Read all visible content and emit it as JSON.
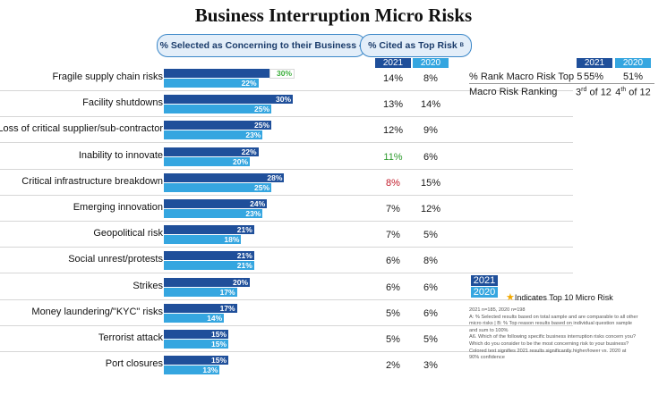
{
  "title": "Business Interruption Micro Risks",
  "header_pills": {
    "selected": "% Selected as Concerning to their Business",
    "selected_sup": "A",
    "cited": "% Cited as Top Risk",
    "cited_sup": "B"
  },
  "year_labels": {
    "y2021": "2021",
    "y2020": "2020"
  },
  "colors": {
    "bar_2021": "#1f4f9a",
    "bar_2020": "#35a6e0",
    "highlight_text": "#3cae3c",
    "increase": "#2e9b2e",
    "decrease": "#c21b2a",
    "star": "#f2a900"
  },
  "chart_data": {
    "type": "bar",
    "orientation": "horizontal",
    "title": "Business Interruption Micro Risks",
    "categories": [
      "Fragile supply chain risks",
      "Facility shutdowns",
      "Loss of critical supplier/sub-contractor",
      "Inability to innovate",
      "Critical infrastructure breakdown",
      "Emerging innovation",
      "Geopolitical risk",
      "Social unrest/protests",
      "Strikes",
      "Money laundering/\"KYC\" risks",
      "Terrorist attack",
      "Port closures"
    ],
    "series": [
      {
        "name": "2021",
        "values": [
          30,
          30,
          25,
          22,
          28,
          24,
          21,
          21,
          20,
          17,
          15,
          15
        ]
      },
      {
        "name": "2020",
        "values": [
          22,
          25,
          23,
          20,
          25,
          23,
          18,
          21,
          17,
          14,
          15,
          13
        ]
      }
    ],
    "value_labels_2021": [
      "30%",
      "30%",
      "25%",
      "22%",
      "28%",
      "24%",
      "21%",
      "21%",
      "20%",
      "17%",
      "15%",
      "15%"
    ],
    "value_labels_2020": [
      "22%",
      "25%",
      "23%",
      "20%",
      "25%",
      "23%",
      "18%",
      "21%",
      "17%",
      "14%",
      "15%",
      "13%"
    ],
    "top_risk": {
      "y2021": [
        "14%",
        "13%",
        "12%",
        "11%",
        "8%",
        "7%",
        "7%",
        "6%",
        "6%",
        "5%",
        "5%",
        "2%"
      ],
      "y2020": [
        "8%",
        "14%",
        "9%",
        "6%",
        "15%",
        "12%",
        "5%",
        "8%",
        "6%",
        "6%",
        "5%",
        "3%"
      ],
      "y2021_status": [
        "none",
        "none",
        "none",
        "up",
        "down",
        "none",
        "none",
        "none",
        "none",
        "none",
        "none",
        "none"
      ]
    },
    "highlighted_2021": [
      true,
      false,
      false,
      false,
      false,
      false,
      false,
      false,
      false,
      false,
      false,
      false
    ],
    "xlim": [
      0,
      35
    ]
  },
  "macro": {
    "row1_label": "% Rank Macro Risk Top 5",
    "row1_2021": "55%",
    "row1_2020": "51%",
    "row2_label": "Macro Risk Ranking",
    "row2_2021_num": "3",
    "row2_2021_sup": "rd",
    "row2_2021_suffix": " of 12",
    "row2_2020_num": "4",
    "row2_2020_sup": "th",
    "row2_2020_suffix": " of 12"
  },
  "legend": {
    "y2021": "2021",
    "y2020": "2020",
    "star_text": "Indicates Top 10 Micro Risk",
    "star_glyph": "★"
  },
  "notes": [
    "2021 n=185, 2020 n=198",
    "A: % Selected results based on total sample and are comparable to all other",
    "micro risks  |  B: % Top reason results based on individual question sample",
    "and sum to 100%",
    "A6. Which of the following specific business interruption risks concern you?",
    "Which do you consider to be the most concerning risk to your business?",
    "Colored text signifies 2021 results significantly higher/lower vs. 2020 at",
    "90% confidence"
  ]
}
